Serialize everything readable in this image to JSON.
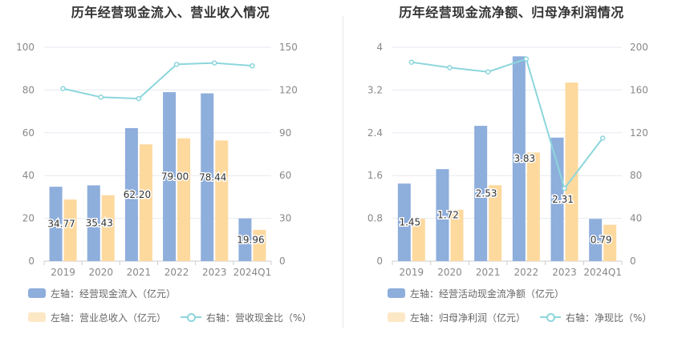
{
  "left": {
    "title": "历年经营现金流入、营业收入情况",
    "legend": {
      "bar1": "左轴：经营现金流入（亿元）",
      "bar2": "左轴：营业总收入（亿元）",
      "line": "右轴：营收现金比（%）"
    },
    "colors": {
      "bar1": "#8eaedc",
      "bar2": "#fdd99e",
      "line": "#8cd6dc"
    }
  },
  "right": {
    "title": "历年经营现金流净额、归母净利润情况",
    "legend": {
      "bar1": "左轴：经营活动现金流净额（亿元）",
      "bar2": "左轴：归母净利润（亿元）",
      "line": "右轴：净现比（%）"
    },
    "colors": {
      "bar1": "#8eaedc",
      "bar2": "#fdd99e",
      "line": "#8cd6dc"
    }
  },
  "chart_data": [
    {
      "type": "bar",
      "title": "历年经营现金流入、营业收入情况",
      "categories": [
        "2019",
        "2020",
        "2021",
        "2022",
        "2023",
        "2024Q1"
      ],
      "left_axis": {
        "ylim": [
          0,
          100
        ],
        "ticks": [
          "0",
          "20",
          "40",
          "60",
          "80",
          "100"
        ]
      },
      "right_axis": {
        "ylim": [
          0,
          150
        ],
        "ticks": [
          "0",
          "30",
          "60",
          "90",
          "120",
          "150"
        ]
      },
      "series": [
        {
          "name": "左轴：经营现金流入（亿元）",
          "axis": "left",
          "kind": "bar",
          "values": [
            34.77,
            35.43,
            62.2,
            79.0,
            78.44,
            19.96
          ],
          "labels": [
            "34.77",
            "35.43",
            "62.20",
            "79.00",
            "78.44",
            "19.96"
          ]
        },
        {
          "name": "左轴：营业总收入（亿元）",
          "axis": "left",
          "kind": "bar",
          "values": [
            28.8,
            30.8,
            54.6,
            57.4,
            56.4,
            14.6
          ]
        },
        {
          "name": "右轴：营收现金比（%）",
          "axis": "right",
          "kind": "line",
          "values": [
            121,
            115,
            114,
            138,
            139,
            137
          ]
        }
      ],
      "grid": true
    },
    {
      "type": "bar",
      "title": "历年经营现金流净额、归母净利润情况",
      "categories": [
        "2019",
        "2020",
        "2021",
        "2022",
        "2023",
        "2024Q1"
      ],
      "left_axis": {
        "ylim": [
          0,
          4
        ],
        "ticks": [
          "0",
          "0.8",
          "1.6",
          "2.4",
          "3.2",
          "4"
        ]
      },
      "right_axis": {
        "ylim": [
          0,
          200
        ],
        "ticks": [
          "0",
          "40",
          "80",
          "120",
          "160",
          "200"
        ]
      },
      "series": [
        {
          "name": "左轴：经营活动现金流净额（亿元）",
          "axis": "left",
          "kind": "bar",
          "values": [
            1.45,
            1.72,
            2.53,
            3.83,
            2.31,
            0.79
          ],
          "labels": [
            "1.45",
            "1.72",
            "2.53",
            "3.83",
            "2.31",
            "0.79"
          ]
        },
        {
          "name": "左轴：归母净利润（亿元）",
          "axis": "left",
          "kind": "bar",
          "values": [
            0.79,
            0.96,
            1.42,
            2.03,
            3.34,
            0.68
          ]
        },
        {
          "name": "右轴：净现比（%）",
          "axis": "right",
          "kind": "line",
          "values": [
            186,
            181,
            177,
            189,
            68,
            115
          ]
        }
      ],
      "grid": true
    }
  ]
}
